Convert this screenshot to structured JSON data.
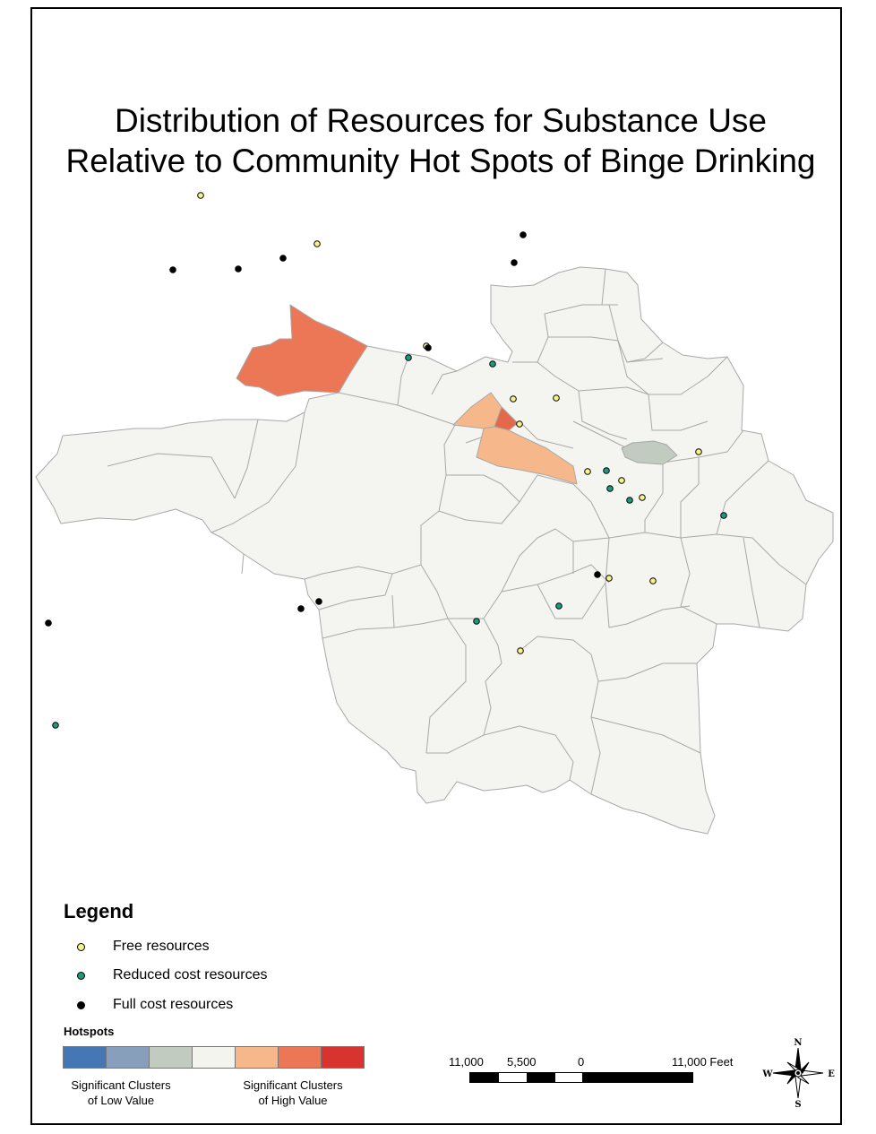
{
  "title": {
    "line1": "Distribution of Resources for Substance Use",
    "line2": "Relative to Community Hot Spots of Binge Drinking"
  },
  "legend": {
    "title": "Legend",
    "items": [
      {
        "label": "Free resources",
        "color": "#f6f38a"
      },
      {
        "label": "Reduced cost resources",
        "color": "#1c9a7c"
      },
      {
        "label": "Full cost resources",
        "color": "#000000"
      }
    ]
  },
  "hotspots": {
    "title": "Hotspots",
    "ramp_colors": [
      "#4677b5",
      "#879fbd",
      "#c2cbbf",
      "#f4f4ef",
      "#f6b88a",
      "#ec7756",
      "#d93330"
    ],
    "low_label_line1": "Significant Clusters",
    "low_label_line2": "of Low Value",
    "high_label_line1": "Significant Clusters",
    "high_label_line2": "of High Value"
  },
  "scale": {
    "labels": [
      "11,000",
      "5,500",
      "0",
      "11,000 Feet"
    ]
  },
  "compass": {
    "n": "N",
    "s": "S",
    "e": "E",
    "w": "W"
  },
  "colors": {
    "base_tract": "#f4f4f1",
    "tract_border": "#a8a8a8",
    "hot_light": "#f6b88a",
    "hot_mid": "#ec7756",
    "hot_dark": "#e4684a",
    "cold": "#c2cbbf"
  }
}
